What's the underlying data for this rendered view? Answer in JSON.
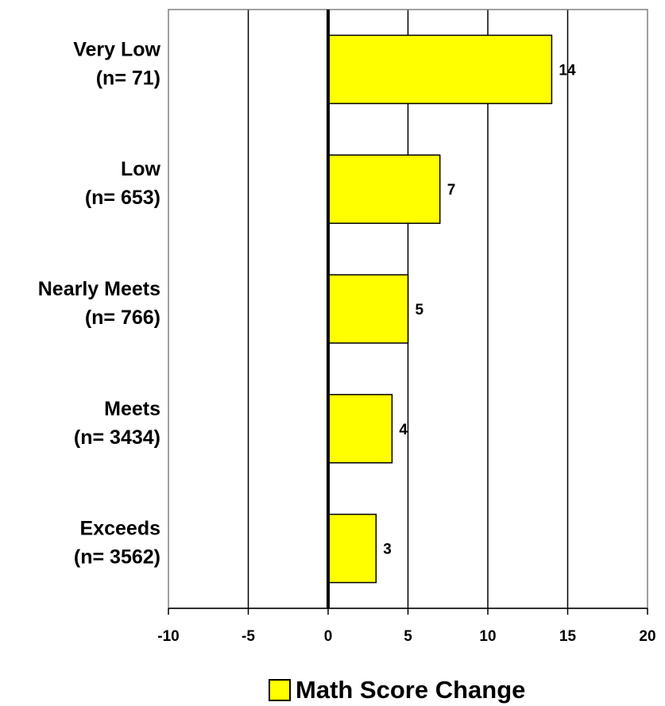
{
  "chart_data": {
    "type": "bar",
    "orientation": "horizontal",
    "categories": [
      [
        "Very Low",
        "(n= 71)"
      ],
      [
        "Low",
        "(n= 653)"
      ],
      [
        "Nearly Meets",
        "(n= 766)"
      ],
      [
        "Meets",
        "(n= 3434)"
      ],
      [
        "Exceeds",
        "(n= 3562)"
      ]
    ],
    "series": [
      {
        "name": "Math Score Change",
        "values": [
          14,
          7,
          5,
          4,
          3
        ],
        "color": "#ffff00"
      }
    ],
    "data_labels": [
      "14",
      "7",
      "5",
      "4",
      "3"
    ],
    "xlim": [
      -10,
      20
    ],
    "xticks": [
      -10,
      -5,
      0,
      5,
      10,
      15,
      20
    ],
    "xtick_labels": [
      "-10",
      "-5",
      "0",
      "5",
      "10",
      "15",
      "20"
    ],
    "grid": "vertical",
    "legend": "bottom",
    "title": "",
    "xlabel": "",
    "ylabel": ""
  }
}
